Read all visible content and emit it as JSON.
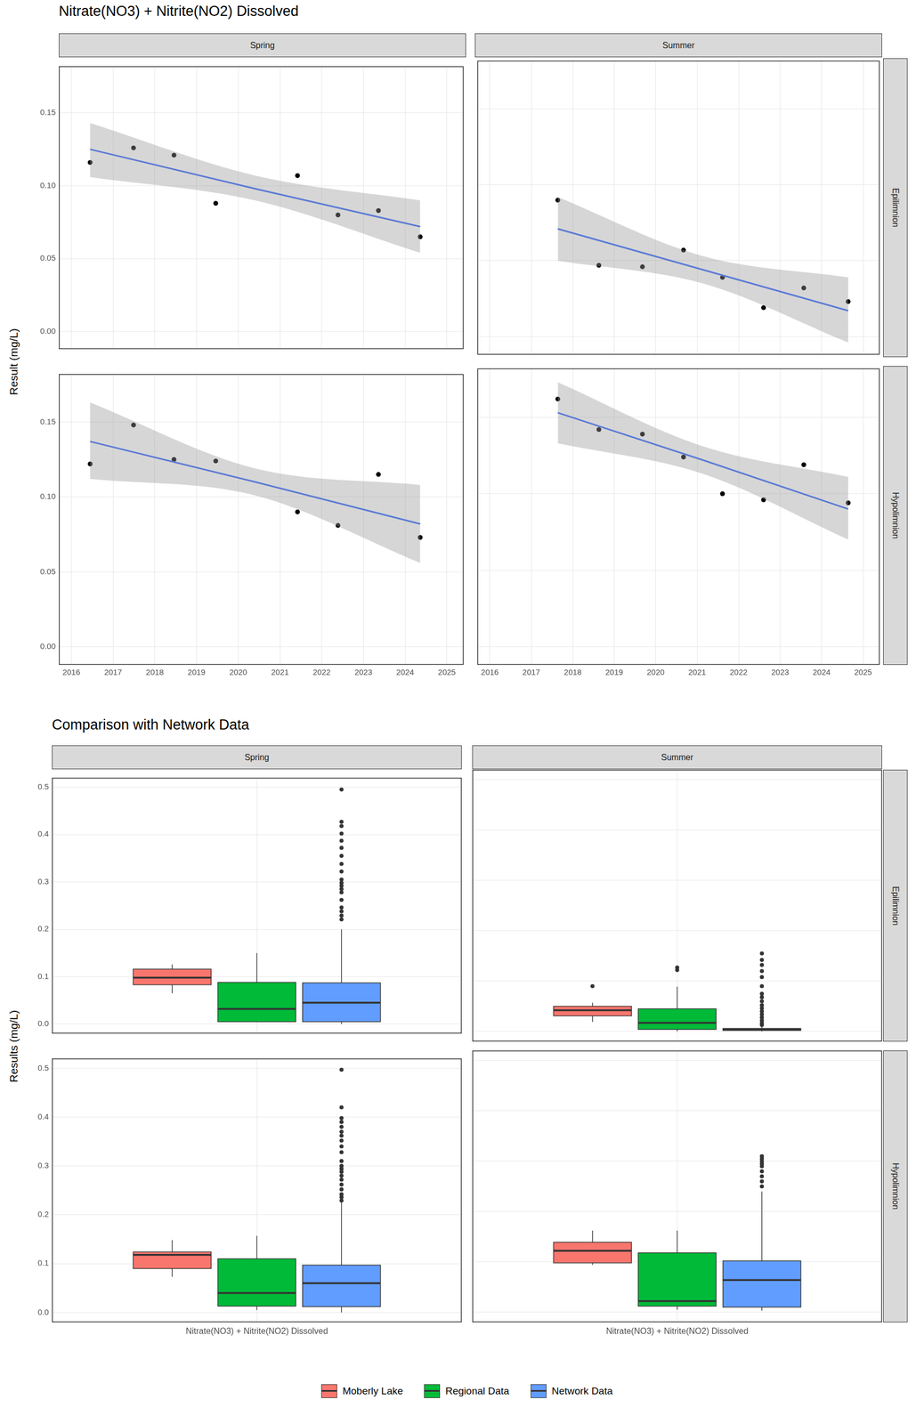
{
  "chart_data": [
    {
      "type": "scatter",
      "title": "Nitrate(NO3) + Nitrite(NO2) Dissolved",
      "y_label": "Result (mg/L)",
      "columns": [
        "Spring",
        "Summer"
      ],
      "rows": [
        "Epilimnion",
        "Hypolimnion"
      ],
      "xlim": [
        2015.7,
        2025.4
      ],
      "xticks": [
        2016,
        2017,
        2018,
        2019,
        2020,
        2021,
        2022,
        2023,
        2024,
        2025
      ],
      "ylim": [
        -0.012,
        0.182
      ],
      "yticks": [
        {
          "value": 0,
          "label": "0.00"
        },
        {
          "value": 0.05,
          "label": "0.05"
        },
        {
          "value": 0.1,
          "label": "0.10"
        },
        {
          "value": 0.15,
          "label": "0.15"
        }
      ],
      "grid": true,
      "color": "#000000",
      "panels": [
        {
          "column": "Spring",
          "row": "Epilimnion",
          "x": [
            2016.45,
            2017.49,
            2018.46,
            2019.46,
            2021.42,
            2022.39,
            2023.36,
            2024.36
          ],
          "values": [
            0.116,
            0.126,
            0.121,
            0.088,
            0.107,
            0.08,
            0.083,
            0.065
          ],
          "trend": {
            "color": "#3366FF",
            "x": [
              2016.45,
              2020.405,
              2024.36
            ],
            "values": [
              0.125,
              0.098,
              0.072
            ],
            "lower": [
              0.106,
              0.09,
              0.054
            ],
            "upper": [
              0.143,
              0.107,
              0.09
            ]
          }
        },
        {
          "column": "Summer",
          "row": "Epilimnion",
          "x": [
            2017.64,
            2018.63,
            2019.68,
            2020.67,
            2021.61,
            2022.6,
            2023.57,
            2024.64
          ],
          "values": [
            0.09,
            0.047,
            0.046,
            0.057,
            0.039,
            0.019,
            0.032,
            0.023
          ],
          "trend": {
            "color": "#3366FF",
            "x": [
              2017.64,
              2021.14,
              2024.64
            ],
            "values": [
              0.071,
              0.044,
              0.017
            ],
            "lower": [
              0.05,
              0.035,
              -0.004
            ],
            "upper": [
              0.092,
              0.053,
              0.039
            ]
          }
        },
        {
          "column": "Spring",
          "row": "Hypolimnion",
          "x": [
            2016.45,
            2017.49,
            2018.46,
            2019.46,
            2021.42,
            2022.39,
            2023.36,
            2024.36
          ],
          "values": [
            0.122,
            0.148,
            0.125,
            0.124,
            0.09,
            0.081,
            0.115,
            0.073
          ],
          "trend": {
            "color": "#3366FF",
            "x": [
              2016.45,
              2020.405,
              2024.36
            ],
            "values": [
              0.137,
              0.11,
              0.082
            ],
            "lower": [
              0.112,
              0.101,
              0.056
            ],
            "upper": [
              0.163,
              0.119,
              0.108
            ]
          }
        },
        {
          "column": "Summer",
          "row": "Hypolimnion",
          "x": [
            2017.64,
            2018.63,
            2019.68,
            2020.67,
            2021.61,
            2022.6,
            2023.57,
            2024.64
          ],
          "values": [
            0.162,
            0.142,
            0.139,
            0.124,
            0.1,
            0.096,
            0.119,
            0.094
          ],
          "trend": {
            "color": "#3366FF",
            "x": [
              2017.64,
              2021.14,
              2024.64
            ],
            "values": [
              0.153,
              0.122,
              0.09
            ],
            "lower": [
              0.133,
              0.113,
              0.07
            ],
            "upper": [
              0.173,
              0.131,
              0.111
            ]
          }
        }
      ]
    },
    {
      "type": "boxplot",
      "title": "Comparison with Network Data",
      "y_label": "Results (mg/L)",
      "columns": [
        "Spring",
        "Summer"
      ],
      "rows": [
        "Epilimnion",
        "Hypolimnion"
      ],
      "categories": [
        "Nitrate(NO3) + Nitrite(NO2) Dissolved"
      ],
      "ylim": [
        -0.02,
        0.52
      ],
      "yticks": [
        {
          "value": 0,
          "label": "0.0"
        },
        0.1,
        0.2,
        0.3,
        0.4,
        0.5
      ],
      "grid": true,
      "legend": "bottom",
      "series": [
        {
          "name": "Moberly Lake",
          "color": "#F8766D"
        },
        {
          "name": "Regional Data",
          "color": "#00BA38"
        },
        {
          "name": "Network Data",
          "color": "#619CFF"
        }
      ],
      "panels": [
        {
          "column": "Spring",
          "row": "Epilimnion",
          "boxes": [
            {
              "name": "Moberly Lake",
              "min": 0.065,
              "q1": 0.083,
              "median": 0.098,
              "q3": 0.116,
              "max": 0.126,
              "outliers": []
            },
            {
              "name": "Regional Data",
              "min": 0.004,
              "q1": 0.005,
              "median": 0.032,
              "q3": 0.088,
              "max": 0.15,
              "outliers": []
            },
            {
              "name": "Network Data",
              "min": 0.0,
              "q1": 0.005,
              "median": 0.045,
              "q3": 0.087,
              "max": 0.2,
              "outliers": [
                0.495,
                0.427,
                0.418,
                0.402,
                0.387,
                0.372,
                0.355,
                0.338,
                0.322,
                0.305,
                0.298,
                0.292,
                0.285,
                0.278,
                0.262,
                0.246,
                0.238,
                0.229,
                0.221
              ]
            }
          ]
        },
        {
          "column": "Summer",
          "row": "Epilimnion",
          "boxes": [
            {
              "name": "Moberly Lake",
              "min": 0.019,
              "q1": 0.031,
              "median": 0.042,
              "q3": 0.05,
              "max": 0.057,
              "outliers": [
                0.09
              ]
            },
            {
              "name": "Regional Data",
              "min": 0.0,
              "q1": 0.004,
              "median": 0.017,
              "q3": 0.045,
              "max": 0.089,
              "outliers": [
                0.122,
                0.127
              ]
            },
            {
              "name": "Network Data",
              "min": 0.0,
              "q1": 0.002,
              "median": 0.004,
              "q3": 0.006,
              "max": 0.011,
              "outliers": [
                0.155,
                0.142,
                0.132,
                0.12,
                0.108,
                0.09,
                0.075,
                0.068,
                0.06,
                0.052,
                0.046,
                0.04,
                0.034,
                0.028,
                0.022,
                0.017,
                0.013
              ]
            }
          ]
        },
        {
          "column": "Spring",
          "row": "Hypolimnion",
          "boxes": [
            {
              "name": "Moberly Lake",
              "min": 0.073,
              "q1": 0.09,
              "median": 0.118,
              "q3": 0.124,
              "max": 0.148,
              "outliers": []
            },
            {
              "name": "Regional Data",
              "min": 0.005,
              "q1": 0.013,
              "median": 0.04,
              "q3": 0.11,
              "max": 0.157,
              "outliers": []
            },
            {
              "name": "Network Data",
              "min": 0.0,
              "q1": 0.012,
              "median": 0.06,
              "q3": 0.097,
              "max": 0.225,
              "outliers": [
                0.497,
                0.42,
                0.398,
                0.39,
                0.38,
                0.37,
                0.362,
                0.352,
                0.34,
                0.328,
                0.31,
                0.3,
                0.294,
                0.288,
                0.28,
                0.272,
                0.262,
                0.252,
                0.242,
                0.236,
                0.229
              ]
            }
          ]
        },
        {
          "column": "Summer",
          "row": "Hypolimnion",
          "boxes": [
            {
              "name": "Moberly Lake",
              "min": 0.094,
              "q1": 0.098,
              "median": 0.122,
              "q3": 0.139,
              "max": 0.162,
              "outliers": []
            },
            {
              "name": "Regional Data",
              "min": 0.005,
              "q1": 0.012,
              "median": 0.022,
              "q3": 0.118,
              "max": 0.162,
              "outliers": []
            },
            {
              "name": "Network Data",
              "min": 0.003,
              "q1": 0.01,
              "median": 0.064,
              "q3": 0.102,
              "max": 0.24,
              "outliers": [
                0.31,
                0.305,
                0.3,
                0.295,
                0.29,
                0.28,
                0.27,
                0.26,
                0.25
              ]
            }
          ]
        }
      ]
    }
  ]
}
